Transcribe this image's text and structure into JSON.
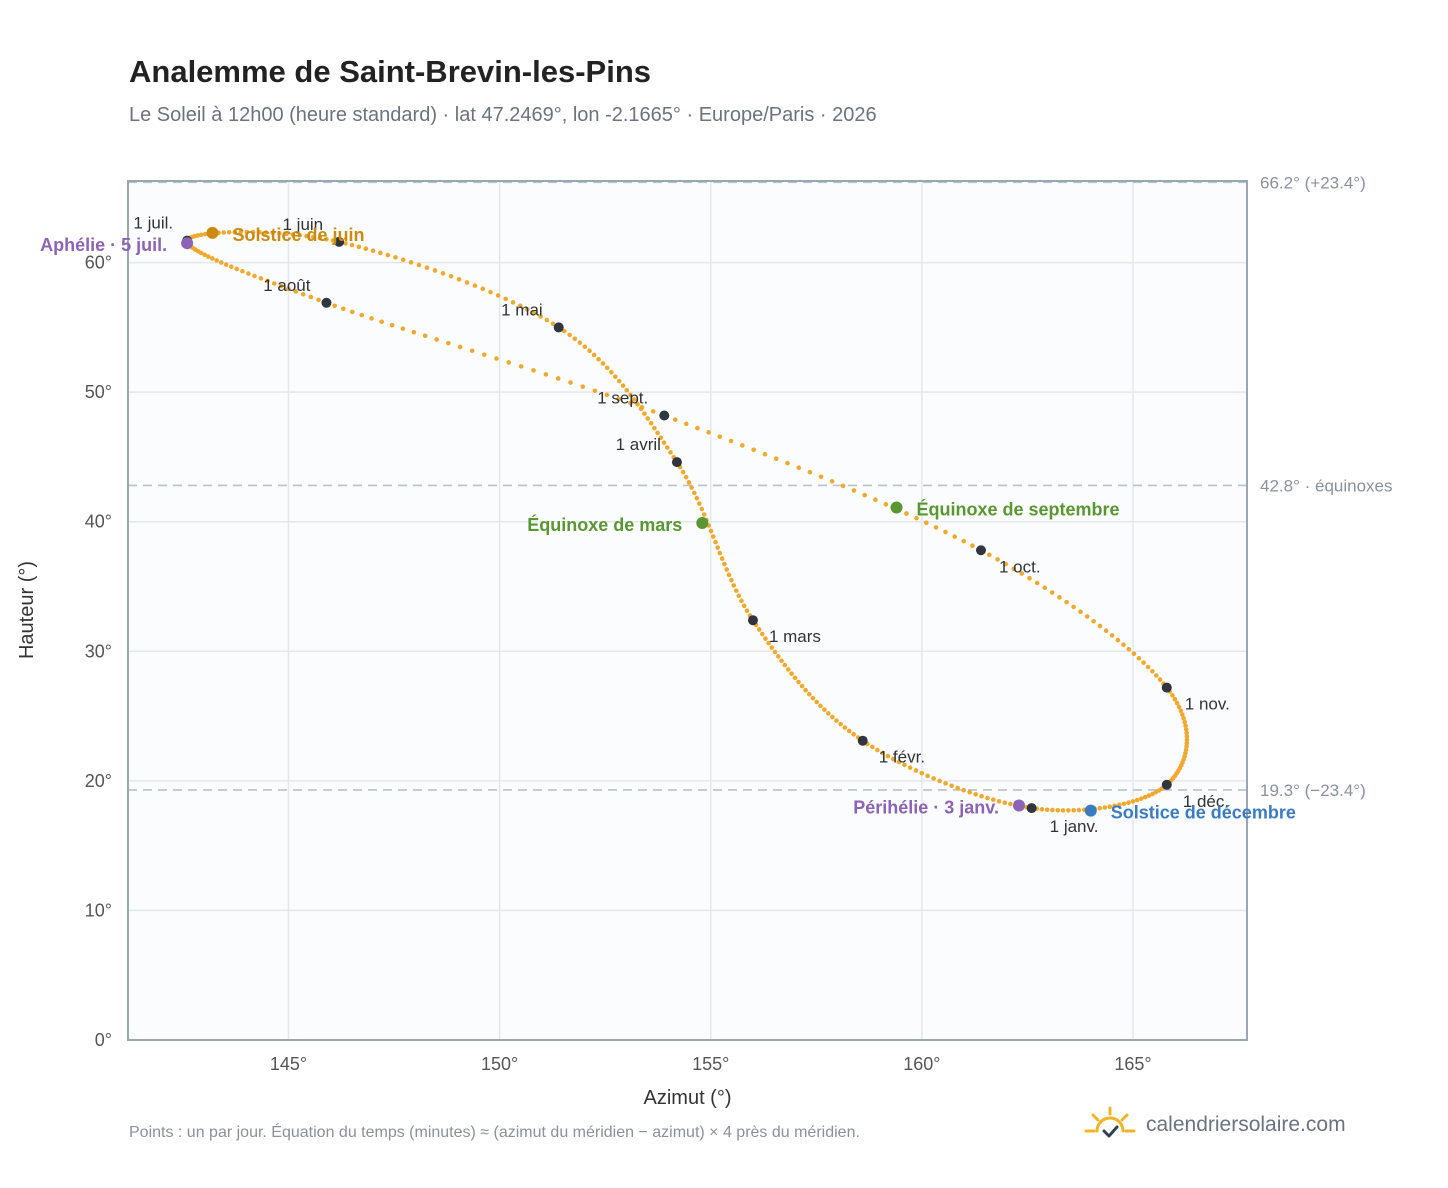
{
  "header": {
    "title": "Analemme de Saint-Brevin-les-Pins",
    "subtitle": "Le Soleil à 12h00 (heure standard) · lat 47.2469°, lon -2.1665° · Europe/Paris · 2026"
  },
  "footer": {
    "note": "Points : un par jour. Équation du temps (minutes) ≈ (azimut du méridien − azimut) × 4 près du méridien.",
    "brand": "calendriersolaire.com"
  },
  "colors": {
    "curve": "#f0a92e",
    "month_dot": "#2f3640",
    "solstice_june": "#cc8a12",
    "solstice_december": "#3b7bbf",
    "equinox": "#5a9632",
    "apsis": "#8c63b5",
    "plot_background": "#fafcfe",
    "grid": "#e3e8ee",
    "frame": "#9aa6b2",
    "reference_line": "#b8c2cc",
    "brand_icon": "#f0b429"
  },
  "brand_icon": "sun-check-icon",
  "chart_data": {
    "type": "scatter",
    "xlabel": "Azimut (°)",
    "ylabel": "Hauteur (°)",
    "xlim": [
      141.2,
      167.7
    ],
    "ylim": [
      0,
      66.3
    ],
    "x_ticks": [
      145,
      150,
      155,
      160,
      165
    ],
    "x_tick_labels": [
      "145°",
      "150°",
      "155°",
      "160°",
      "165°"
    ],
    "y_ticks": [
      0,
      10,
      20,
      30,
      40,
      50,
      60
    ],
    "y_tick_labels": [
      "0°",
      "10°",
      "20°",
      "30°",
      "40°",
      "50°",
      "60°"
    ],
    "grid": true,
    "daily_points": "one per day",
    "month_starts": [
      {
        "label": "1 janv.",
        "az": 162.6,
        "alt": 17.9
      },
      {
        "label": "1 févr.",
        "az": 158.6,
        "alt": 23.1
      },
      {
        "label": "1 mars",
        "az": 156.0,
        "alt": 32.4
      },
      {
        "label": "1 avril",
        "az": 154.2,
        "alt": 44.6
      },
      {
        "label": "1 mai",
        "az": 151.4,
        "alt": 55.0
      },
      {
        "label": "1 juin",
        "az": 146.2,
        "alt": 61.6
      },
      {
        "label": "1 juil.",
        "az": 142.6,
        "alt": 61.7
      },
      {
        "label": "1 août",
        "az": 145.9,
        "alt": 56.9
      },
      {
        "label": "1 sept.",
        "az": 153.9,
        "alt": 48.2
      },
      {
        "label": "1 oct.",
        "az": 161.4,
        "alt": 37.8
      },
      {
        "label": "1 nov.",
        "az": 165.8,
        "alt": 27.2
      },
      {
        "label": "1 déc.",
        "az": 165.8,
        "alt": 19.7
      }
    ],
    "events": [
      {
        "label": "Solstice de juin",
        "az": 143.2,
        "alt": 62.3,
        "kind": "solstice_june"
      },
      {
        "label": "Solstice de décembre",
        "az": 164.0,
        "alt": 17.7,
        "kind": "solstice_december"
      },
      {
        "label": "Équinoxe de mars",
        "az": 154.8,
        "alt": 39.9,
        "kind": "equinox"
      },
      {
        "label": "Équinoxe de septembre",
        "az": 159.4,
        "alt": 41.1,
        "kind": "equinox"
      },
      {
        "label": "Aphélie · 5 juil.",
        "az": 142.6,
        "alt": 61.5,
        "kind": "apsis"
      },
      {
        "label": "Périhélie · 3 janv.",
        "az": 162.3,
        "alt": 18.1,
        "kind": "apsis"
      }
    ],
    "reference_lines": [
      {
        "value": 66.2,
        "label": "66.2° (+23.4°)"
      },
      {
        "value": 42.8,
        "label": "42.8° · équinoxes"
      },
      {
        "value": 19.3,
        "label": "19.3° (−23.4°)"
      }
    ]
  }
}
